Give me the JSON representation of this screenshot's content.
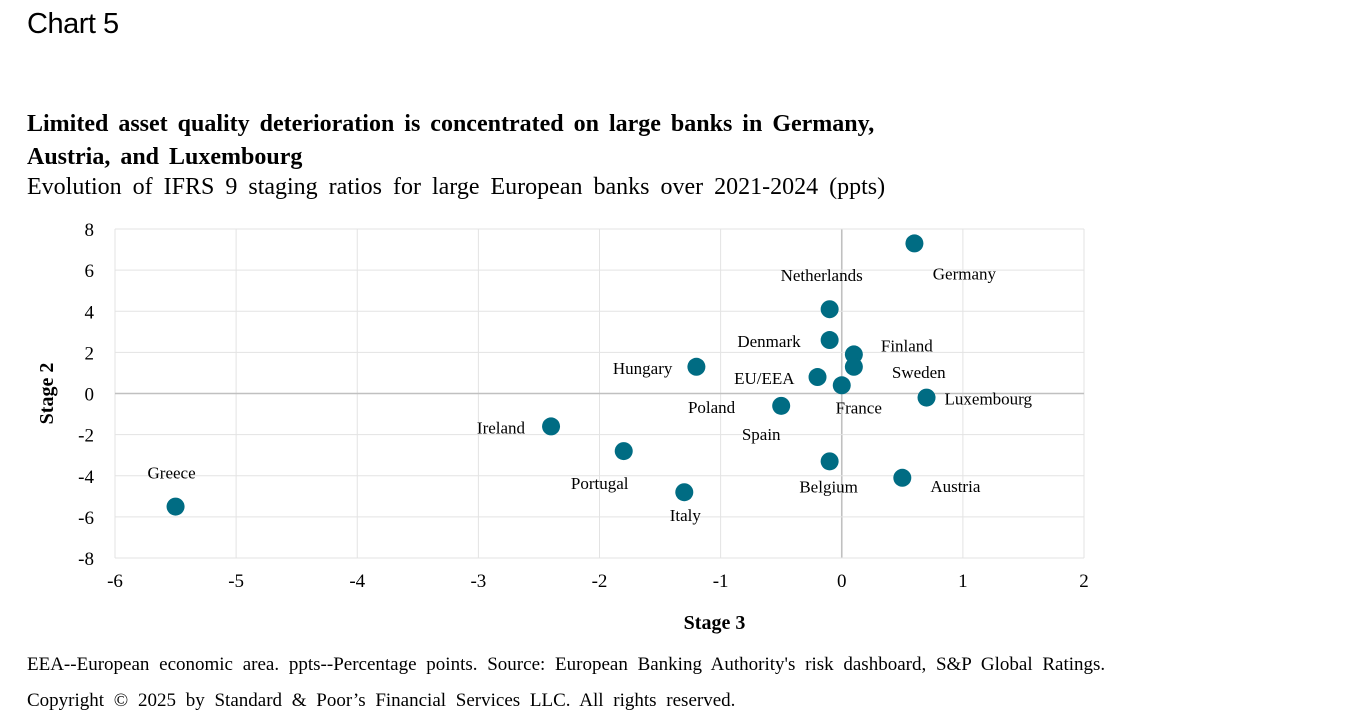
{
  "header": {
    "chart_label": "Chart 5",
    "title_line1": "Limited asset quality deterioration is concentrated on large banks in Germany,",
    "title_line2": "Austria, and Luxembourg",
    "subtitle": "Evolution of IFRS 9 staging ratios for large European banks over 2021-2024 (ppts)"
  },
  "footer": {
    "note": "EEA--European economic area. ppts--Percentage points. Source: European Banking Authority's risk dashboard, S&P Global Ratings.",
    "copyright": "Copyright © 2025 by Standard & Poor’s Financial Services LLC. All rights reserved."
  },
  "colors": {
    "marker": "#006C83",
    "grid": "#E3E3E3",
    "zero_axis": "#C0C0C0"
  },
  "chart_data": {
    "type": "scatter",
    "title": "Limited asset quality deterioration is concentrated on large banks in Germany, Austria, and Luxembourg",
    "subtitle": "Evolution of IFRS 9 staging ratios for large European banks over 2021-2024 (ppts)",
    "xlabel": "Stage 3",
    "ylabel": "Stage 2",
    "xlim": [
      -6,
      2
    ],
    "ylim": [
      -8,
      8
    ],
    "xticks": [
      "-6",
      "-5",
      "-4",
      "-3",
      "-2",
      "-1",
      "0",
      "1",
      "2"
    ],
    "yticks": [
      "8",
      "6",
      "4",
      "2",
      "0",
      "-2",
      "-4",
      "-6",
      "-8"
    ],
    "grid": true,
    "legend": "none",
    "points": [
      {
        "label": "Germany",
        "x": 0.6,
        "y": 7.3,
        "label_pos": "below-right"
      },
      {
        "label": "Netherlands",
        "x": -0.1,
        "y": 4.1,
        "label_pos": "above-left"
      },
      {
        "label": "Denmark",
        "x": -0.1,
        "y": 2.6,
        "label_pos": "left"
      },
      {
        "label": "Finland",
        "x": 0.1,
        "y": 1.9,
        "label_pos": "right"
      },
      {
        "label": "Sweden",
        "x": 0.1,
        "y": 1.3,
        "label_pos": "right-low"
      },
      {
        "label": "EU/EEA",
        "x": -0.2,
        "y": 0.8,
        "label_pos": "left"
      },
      {
        "label": "France",
        "x": 0.0,
        "y": 0.4,
        "label_pos": "below"
      },
      {
        "label": "Luxembourg",
        "x": 0.7,
        "y": -0.2,
        "label_pos": "right"
      },
      {
        "label": "Hungary",
        "x": -1.2,
        "y": 1.3,
        "label_pos": "left"
      },
      {
        "label": "Poland",
        "x": -0.5,
        "y": -0.6,
        "label_pos": "left"
      },
      {
        "label": "Spain",
        "x": -0.5,
        "y": -0.6,
        "label_pos": "below-left",
        "label_only": true
      },
      {
        "label": "Ireland",
        "x": -2.4,
        "y": -1.6,
        "label_pos": "left"
      },
      {
        "label": "Portugal",
        "x": -1.8,
        "y": -2.8,
        "label_pos": "below-left"
      },
      {
        "label": "Italy",
        "x": -1.3,
        "y": -4.8,
        "label_pos": "below"
      },
      {
        "label": "Belgium",
        "x": -0.1,
        "y": -3.3,
        "label_pos": "below"
      },
      {
        "label": "Austria",
        "x": 0.5,
        "y": -4.1,
        "label_pos": "right"
      },
      {
        "label": "Greece",
        "x": -5.5,
        "y": -5.5,
        "label_pos": "above"
      }
    ]
  }
}
